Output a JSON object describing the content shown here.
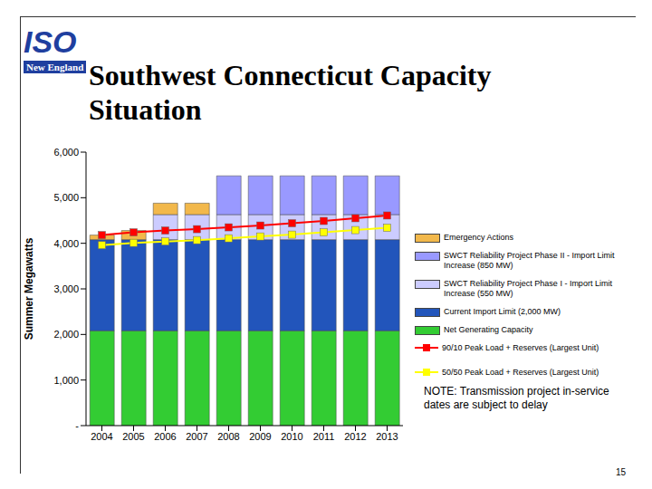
{
  "title": "Southwest Connecticut Capacity Situation",
  "logo": {
    "text": "ISO",
    "subtext": "New England"
  },
  "note": "NOTE: Transmission project in-service dates are subject to delay",
  "page_number": "15",
  "chart_data": {
    "type": "bar",
    "stacked": true,
    "grid": false,
    "legend": "right",
    "y_label": "Summer Megawatts",
    "categories": [
      "2004",
      "2005",
      "2006",
      "2007",
      "2008",
      "2009",
      "2010",
      "2011",
      "2012",
      "2013"
    ],
    "ylim": [
      0,
      6000
    ],
    "yticks": [
      {
        "value": 0,
        "label": "-"
      },
      {
        "value": 1000,
        "label": "1,000"
      },
      {
        "value": 2000,
        "label": "2,000"
      },
      {
        "value": 3000,
        "label": "3,000"
      },
      {
        "value": 4000,
        "label": "4,000"
      },
      {
        "value": 5000,
        "label": "5,000"
      },
      {
        "value": 6000,
        "label": "6,000"
      }
    ],
    "series": [
      {
        "name": "Emergency Actions",
        "type": "bar",
        "color": "#f2b84b",
        "values": [
          100,
          200,
          250,
          250,
          null,
          null,
          null,
          null,
          null,
          null
        ]
      },
      {
        "name": "SWCT Reliability Project Phase II - Import Limit Increase (850 MW)",
        "type": "bar",
        "color": "#9999ff",
        "values": [
          null,
          null,
          null,
          null,
          850,
          850,
          850,
          850,
          850,
          850
        ]
      },
      {
        "name": "SWCT Reliability Project Phase I - Import Limit Increase (550 MW)",
        "type": "bar",
        "color": "#ccccff",
        "values": [
          null,
          null,
          550,
          550,
          550,
          550,
          550,
          550,
          550,
          550
        ]
      },
      {
        "name": "Current Import Limit (2,000 MW)",
        "type": "bar",
        "color": "#2255bb",
        "values": [
          2000,
          2000,
          2000,
          2000,
          2000,
          2000,
          2000,
          2000,
          2000,
          2000
        ]
      },
      {
        "name": "Net Generating Capacity",
        "type": "bar",
        "color": "#33cc33",
        "values": [
          2080,
          2080,
          2080,
          2080,
          2080,
          2080,
          2080,
          2080,
          2080,
          2080
        ]
      },
      {
        "name": "90/10 Peak Load + Reserves (Largest Unit)",
        "type": "line",
        "marker": "square",
        "color": "#ff0000",
        "values": [
          4180,
          4240,
          4280,
          4310,
          4350,
          4390,
          4440,
          4490,
          4550,
          4610
        ]
      },
      {
        "name": "50/50 Peak Load + Reserves (Largest Unit)",
        "type": "line",
        "marker": "square",
        "color": "#ffff00",
        "values": [
          3960,
          4010,
          4040,
          4070,
          4110,
          4150,
          4190,
          4240,
          4290,
          4340
        ]
      }
    ]
  }
}
